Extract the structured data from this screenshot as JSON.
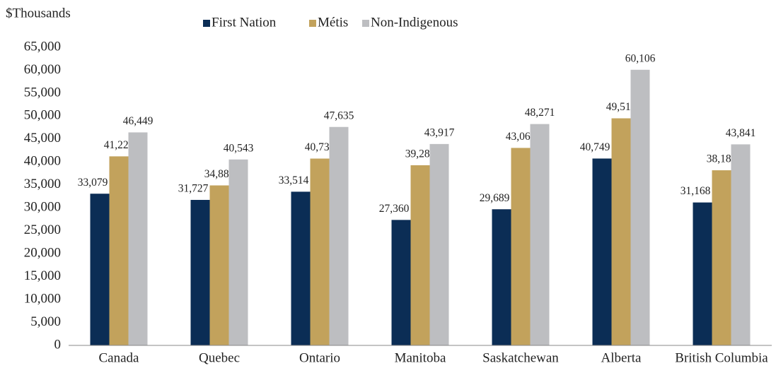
{
  "chart_data": {
    "type": "bar",
    "y_axis_label": "$Thousands",
    "categories": [
      "Canada",
      "Quebec",
      "Ontario",
      "Manitoba",
      "Saskatchewan",
      "Alberta",
      "British Columbia"
    ],
    "series": [
      {
        "name": "First Nation",
        "color": "#0b2d55",
        "values": [
          33079,
          31727,
          33514,
          27360,
          29689,
          40749,
          31168
        ],
        "value_labels": [
          "33,079",
          "31,727",
          "33,514",
          "27,360",
          "29,689",
          "40,749",
          "31,168"
        ]
      },
      {
        "name": "Métis",
        "color": "#c2a25c",
        "values": [
          41223,
          34889,
          40739,
          39289,
          43066,
          49519,
          38189
        ],
        "value_labels": [
          "41,223",
          "34,889",
          "40,739",
          "39,289",
          "43,066",
          "49,519",
          "38,189"
        ]
      },
      {
        "name": "Non-Indigenous",
        "color": "#bdbec1",
        "values": [
          46449,
          40543,
          47635,
          43917,
          48271,
          60106,
          43841
        ],
        "value_labels": [
          "46,449",
          "40,543",
          "47,635",
          "43,917",
          "48,271",
          "60,106",
          "43,841"
        ]
      }
    ],
    "ylim": [
      0,
      65000
    ],
    "yticks": [
      0,
      {
        "value": 5000,
        "label": "5,000"
      },
      {
        "value": 10000,
        "label": "10,000"
      },
      {
        "value": 15000,
        "label": "15,000"
      },
      {
        "value": 20000,
        "label": "20,000"
      },
      {
        "value": 25000,
        "label": "25,000"
      },
      {
        "value": 30000,
        "label": "30,000"
      },
      {
        "value": 35000,
        "label": "35,000"
      },
      {
        "value": 40000,
        "label": "40,000"
      },
      {
        "value": 45000,
        "label": "45,000"
      },
      {
        "value": 50000,
        "label": "50,000"
      },
      {
        "value": 55000,
        "label": "55,000"
      },
      {
        "value": 60000,
        "label": "60,000"
      },
      {
        "value": 65000,
        "label": "65,000"
      }
    ],
    "grid": false,
    "legend": "top"
  }
}
